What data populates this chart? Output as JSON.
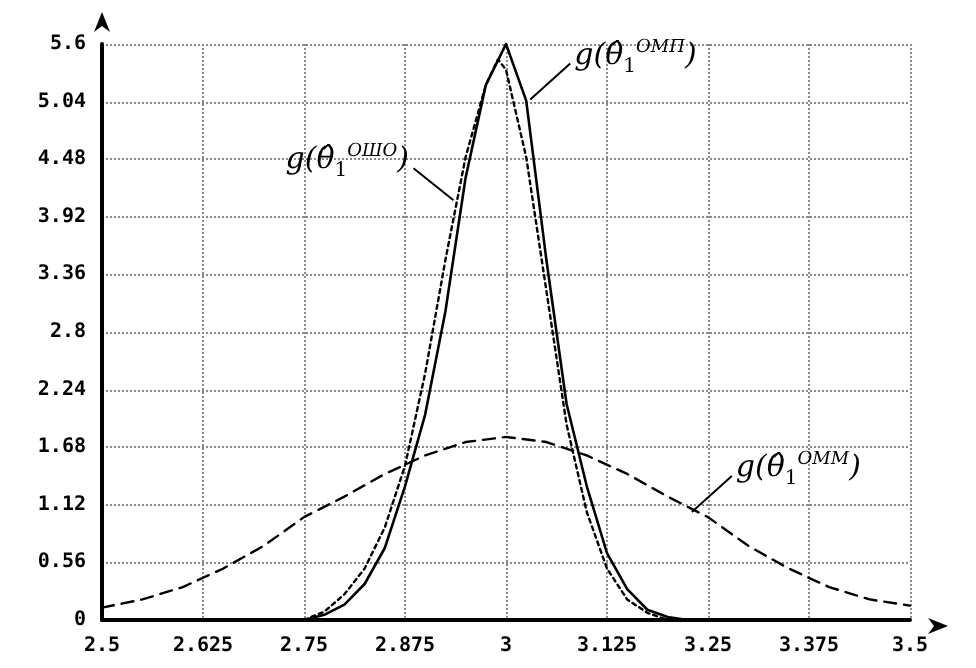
{
  "chart_data": {
    "type": "line",
    "xlim": [
      2.5,
      3.5
    ],
    "xticks": [
      2.5,
      2.625,
      2.75,
      2.875,
      3,
      3.125,
      3.25,
      3.375,
      3.5
    ],
    "ylim": [
      0,
      5.6
    ],
    "yticks": [
      0,
      0.56,
      1.12,
      1.68,
      2.24,
      2.8,
      3.36,
      3.92,
      4.48,
      5.04,
      5.6
    ],
    "grid": true,
    "marker": "none",
    "series": [
      {
        "color": "#000000",
        "line_style": "solid",
        "x": [
          2.5,
          2.75,
          2.775,
          2.8,
          2.825,
          2.85,
          2.875,
          2.9,
          2.925,
          2.95,
          2.975,
          3.0,
          3.025,
          3.05,
          3.075,
          3.1,
          3.125,
          3.15,
          3.175,
          3.2,
          3.225,
          3.5
        ],
        "values": [
          0,
          0,
          0.05,
          0.15,
          0.35,
          0.7,
          1.3,
          2.0,
          3.0,
          4.3,
          5.2,
          5.6,
          5.05,
          3.5,
          2.1,
          1.3,
          0.65,
          0.3,
          0.1,
          0.03,
          0,
          0
        ]
      },
      {
        "color": "#000000",
        "line_style": "dotted",
        "x": [
          2.75,
          2.775,
          2.8,
          2.825,
          2.85,
          2.875,
          2.9,
          2.925,
          2.95,
          2.975,
          2.99,
          3.0,
          3.025,
          3.05,
          3.075,
          3.1,
          3.125,
          3.15,
          3.175,
          3.2
        ],
        "values": [
          0,
          0.08,
          0.25,
          0.5,
          0.9,
          1.5,
          2.4,
          3.5,
          4.5,
          5.2,
          5.45,
          5.35,
          4.5,
          3.2,
          1.9,
          1.05,
          0.5,
          0.2,
          0.07,
          0
        ]
      },
      {
        "color": "#000000",
        "line_style": "dashed",
        "x": [
          2.5,
          2.55,
          2.6,
          2.65,
          2.7,
          2.75,
          2.8,
          2.85,
          2.9,
          2.95,
          3.0,
          3.05,
          3.1,
          3.15,
          3.2,
          3.25,
          3.3,
          3.35,
          3.4,
          3.45,
          3.5
        ],
        "values": [
          0.12,
          0.2,
          0.32,
          0.5,
          0.72,
          1.0,
          1.2,
          1.42,
          1.6,
          1.73,
          1.78,
          1.73,
          1.6,
          1.42,
          1.2,
          1.0,
          0.72,
          0.5,
          0.32,
          0.2,
          0.14
        ]
      }
    ],
    "annotations": [
      {
        "text": "g(θ̂$_{1}$$^{ОМП}$)",
        "x": 3.03,
        "y": 5.06
      },
      {
        "text": "g(θ̂$_{1}$$^{ОШО}$)",
        "x": 2.935,
        "y": 4.08
      },
      {
        "text": "g(θ̂$_{1}$$^{ОММ}$)",
        "x": 3.23,
        "y": 1.05
      }
    ]
  }
}
